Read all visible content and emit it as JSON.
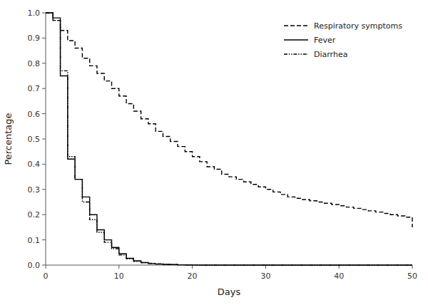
{
  "chart_data": {
    "type": "step",
    "xlabel": "Days",
    "ylabel": "Percentage",
    "xlim": [
      0,
      50
    ],
    "ylim": [
      0,
      1.0
    ],
    "xticks": [
      0,
      10,
      20,
      30,
      40,
      50
    ],
    "yticks": [
      {
        "value": 0.0,
        "label": "0.0"
      },
      0.1,
      0.2,
      0.3,
      0.4,
      0.5,
      0.6,
      0.7,
      0.8,
      0.9,
      {
        "value": 1.0,
        "label": "1.0"
      }
    ],
    "grid": false,
    "legend": "upper right",
    "series": [
      {
        "name": "Respiratory symptoms",
        "color": "#000000",
        "line_style": "dashed",
        "x": [
          0,
          1,
          2,
          3,
          4,
          5,
          6,
          7,
          8,
          9,
          10,
          11,
          12,
          13,
          14,
          15,
          16,
          17,
          18,
          19,
          20,
          21,
          22,
          23,
          24,
          25,
          26,
          27,
          28,
          29,
          30,
          31,
          32,
          33,
          34,
          35,
          36,
          37,
          38,
          39,
          40,
          41,
          42,
          43,
          44,
          45,
          46,
          47,
          48,
          49,
          50
        ],
        "values": [
          1.0,
          0.97,
          0.93,
          0.89,
          0.86,
          0.82,
          0.79,
          0.76,
          0.73,
          0.7,
          0.67,
          0.64,
          0.61,
          0.58,
          0.56,
          0.53,
          0.51,
          0.49,
          0.47,
          0.45,
          0.43,
          0.41,
          0.39,
          0.38,
          0.36,
          0.35,
          0.34,
          0.33,
          0.32,
          0.31,
          0.3,
          0.29,
          0.28,
          0.27,
          0.265,
          0.26,
          0.255,
          0.25,
          0.245,
          0.24,
          0.235,
          0.23,
          0.225,
          0.22,
          0.215,
          0.21,
          0.205,
          0.2,
          0.195,
          0.19,
          0.15
        ]
      },
      {
        "name": "Fever",
        "color": "#000000",
        "line_style": "solid",
        "x": [
          0,
          1,
          2,
          3,
          4,
          5,
          6,
          7,
          8,
          9,
          10,
          11,
          12,
          13,
          14,
          15,
          16,
          17,
          18,
          19,
          20,
          21,
          22,
          50
        ],
        "values": [
          1.0,
          0.98,
          0.75,
          0.42,
          0.34,
          0.27,
          0.2,
          0.14,
          0.1,
          0.07,
          0.045,
          0.027,
          0.017,
          0.01,
          0.006,
          0.004,
          0.003,
          0.002,
          0.001,
          0.0007,
          0.0003,
          0.0001,
          0.0,
          0.0
        ]
      },
      {
        "name": "Diarrhea",
        "color": "#000000",
        "line_style": "dashdotdot",
        "x": [
          0,
          1,
          2,
          3,
          4,
          5,
          6,
          7,
          8,
          9,
          10,
          11,
          12,
          13,
          14,
          15,
          16,
          17,
          18,
          19,
          20,
          21,
          22,
          50
        ],
        "values": [
          1.0,
          0.97,
          0.77,
          0.43,
          0.34,
          0.25,
          0.18,
          0.13,
          0.09,
          0.065,
          0.04,
          0.025,
          0.015,
          0.01,
          0.007,
          0.005,
          0.003,
          0.002,
          0.001,
          0.0007,
          0.0003,
          0.0001,
          0.0,
          0.0
        ]
      }
    ]
  }
}
